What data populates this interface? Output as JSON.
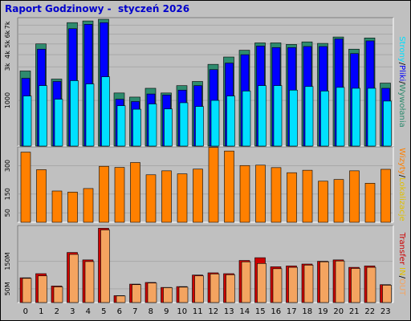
{
  "title": "Raport Godzinowy -  styczeń 2026",
  "colors": {
    "hits": "#2e8b6e",
    "files": "#0000ff",
    "pages": "#00e0ff",
    "visits": "#ff8000",
    "kbin": "#cc0000",
    "kbout": "#f4a460",
    "bg": "#c0c0c0"
  },
  "side_labels": {
    "top": {
      "parts": [
        "Strony",
        "/",
        "Pliki",
        "/",
        "Wywołania"
      ]
    },
    "mid": {
      "parts": [
        "Wizyty",
        "/",
        "Lokalizacje"
      ]
    },
    "bottom": {
      "parts": [
        "Transfer",
        " ",
        "IN",
        "/",
        "OUT"
      ]
    }
  },
  "chart_data": [
    {
      "type": "bar",
      "categories": [
        "0",
        "1",
        "2",
        "3",
        "4",
        "5",
        "6",
        "7",
        "8",
        "9",
        "10",
        "11",
        "12",
        "13",
        "14",
        "15",
        "16",
        "17",
        "18",
        "19",
        "20",
        "21",
        "22",
        "23"
      ],
      "series": [
        {
          "name": "Wywołania",
          "values": [
            2700,
            5000,
            2150,
            7300,
            7500,
            7700,
            1350,
            1150,
            1600,
            1350,
            1750,
            2000,
            3200,
            3800,
            4400,
            5100,
            5100,
            4950,
            5200,
            5050,
            5700,
            4500,
            5600,
            1900
          ]
        },
        {
          "name": "Pliki",
          "values": [
            2200,
            4500,
            2000,
            6600,
            7100,
            7300,
            1050,
            950,
            1300,
            1250,
            1500,
            1750,
            2800,
            3300,
            4000,
            4800,
            4650,
            4650,
            4750,
            4750,
            5500,
            4100,
            5300,
            1600
          ]
        },
        {
          "name": "Strony",
          "values": [
            1200,
            1750,
            1050,
            2050,
            1850,
            2300,
            780,
            650,
            850,
            660,
            900,
            750,
            1000,
            1200,
            1450,
            1750,
            1750,
            1500,
            1700,
            1450,
            1650,
            1600,
            1600,
            970
          ]
        }
      ],
      "yticks": [
        1000,
        3000,
        4000,
        5000,
        6000,
        7000
      ],
      "ytick_labels": [
        "1000",
        "3k",
        "4k",
        "5k",
        "6k",
        "7k"
      ],
      "ylim": [
        0,
        7900
      ],
      "scale": "sqrt"
    },
    {
      "type": "bar",
      "categories": [
        "0",
        "1",
        "2",
        "3",
        "4",
        "5",
        "6",
        "7",
        "8",
        "9",
        "10",
        "11",
        "12",
        "13",
        "14",
        "15",
        "16",
        "17",
        "18",
        "19",
        "20",
        "21",
        "22",
        "23"
      ],
      "series": [
        {
          "name": "Wizyty",
          "values": [
            372,
            279,
            166,
            160,
            179,
            297,
            291,
            317,
            252,
            273,
            257,
            282,
            397,
            378,
            301,
            303,
            290,
            263,
            276,
            218,
            227,
            273,
            207,
            281
          ]
        }
      ],
      "yticks": [
        50,
        150,
        300
      ],
      "ytick_labels": [
        "50",
        "150",
        "300"
      ],
      "ylim": [
        0,
        400
      ]
    },
    {
      "type": "bar",
      "categories": [
        "0",
        "1",
        "2",
        "3",
        "4",
        "5",
        "6",
        "7",
        "8",
        "9",
        "10",
        "11",
        "12",
        "13",
        "14",
        "15",
        "16",
        "17",
        "18",
        "19",
        "20",
        "21",
        "22",
        "23"
      ],
      "series": [
        {
          "name": "Transfer IN",
          "values": [
            90,
            105,
            60,
            182,
            155,
            270,
            25,
            67,
            73,
            55,
            58,
            100,
            108,
            105,
            153,
            163,
            130,
            133,
            140,
            150,
            155,
            128,
            133,
            65
          ]
        },
        {
          "name": "Transfer OUT",
          "values": [
            88,
            97,
            57,
            175,
            149,
            264,
            24,
            65,
            71,
            54,
            56,
            97,
            104,
            101,
            148,
            142,
            123,
            128,
            136,
            148,
            151,
            124,
            128,
            63
          ]
        }
      ],
      "yticks": [
        50,
        150
      ],
      "ytick_labels": [
        "50M",
        "150M"
      ],
      "ylim": [
        0,
        280
      ]
    }
  ]
}
